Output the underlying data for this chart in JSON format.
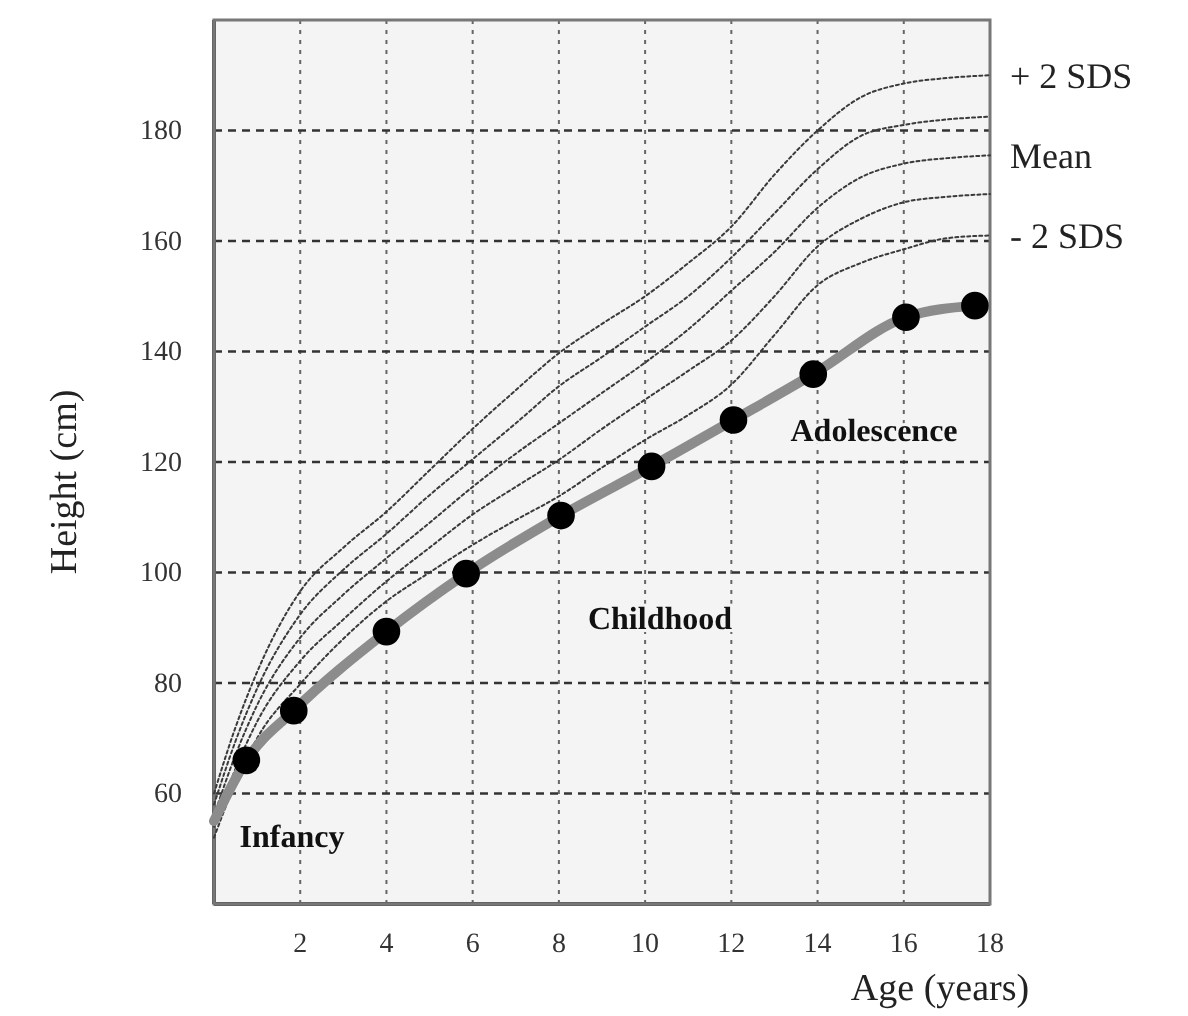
{
  "chart_data": {
    "type": "line",
    "xlabel": "Age (years)",
    "ylabel": "Height (cm)",
    "xlim": [
      0,
      18
    ],
    "xticks": [
      2,
      4,
      6,
      8,
      10,
      12,
      14,
      16,
      18
    ],
    "ylim": [
      40,
      200
    ],
    "yticks": [
      60,
      80,
      100,
      120,
      140,
      160,
      180
    ],
    "grid": true,
    "x": [
      0,
      0.5,
      1,
      2,
      3,
      4,
      5,
      6,
      7,
      8,
      9,
      10,
      11,
      12,
      13,
      14,
      15,
      16,
      17,
      18
    ],
    "series": [
      {
        "name": "+ 2 SDS",
        "color": "#3a3a3a",
        "line_style": "dotted",
        "marker": "none",
        "values": [
          60,
          72,
          82,
          96.6,
          104.5,
          111,
          118.5,
          126,
          133,
          139.7,
          145,
          150,
          156,
          162.6,
          172,
          180,
          186,
          188.5,
          189.5,
          190
        ]
      },
      {
        "color": "#3a3a3a",
        "line_style": "dotted",
        "marker": "none",
        "values": [
          58,
          69.5,
          79,
          92.4,
          100.5,
          107,
          114,
          120.5,
          127,
          133.7,
          139,
          144.5,
          150,
          157,
          165,
          173,
          179,
          181,
          182,
          182.5
        ]
      },
      {
        "name": "Mean",
        "color": "#3a3a3a",
        "line_style": "dotted",
        "marker": "none",
        "values": [
          56,
          67,
          76,
          88.2,
          96,
          102.6,
          109,
          115.5,
          121.5,
          127,
          132.5,
          138,
          144,
          151,
          158,
          166,
          171.5,
          174,
          175,
          175.5
        ]
      },
      {
        "color": "#3a3a3a",
        "line_style": "dotted",
        "marker": "none",
        "values": [
          54,
          64.5,
          73,
          84,
          91.5,
          98.4,
          104.5,
          110.5,
          115.5,
          120.4,
          126,
          131.3,
          136.5,
          142,
          150,
          159,
          164,
          167,
          168,
          168.5
        ]
      },
      {
        "name": "- 2 SDS",
        "color": "#3a3a3a",
        "line_style": "dotted",
        "marker": "none",
        "values": [
          52,
          62,
          70,
          79.8,
          88,
          94.8,
          100,
          105,
          109.5,
          113.8,
          119,
          124,
          128.5,
          134,
          143,
          152,
          156,
          158.5,
          160.5,
          161
        ]
      },
      {
        "type": "line",
        "color": "#8c8c8c",
        "line_style": "solid",
        "marker": "none",
        "x": [
          0,
          0.75,
          1.85,
          4,
          5.85,
          8.05,
          10.15,
          12.05,
          13.9,
          16.05,
          17.65
        ],
        "values": [
          55,
          66,
          75,
          89.3,
          99.8,
          110.3,
          119.2,
          127.6,
          135.9,
          146.2,
          148.3
        ]
      },
      {
        "type": "scatter",
        "color": "#000000",
        "marker": "circle",
        "x": [
          0.75,
          1.85,
          4,
          5.85,
          8.05,
          10.15,
          12.05,
          13.9,
          16.05,
          17.65
        ],
        "values": [
          66,
          75,
          89.3,
          99.8,
          110.3,
          119.2,
          127.6,
          135.9,
          146.2,
          148.3
        ]
      }
    ],
    "annotations": [
      "Infancy",
      "Childhood",
      "Adolescence"
    ]
  }
}
